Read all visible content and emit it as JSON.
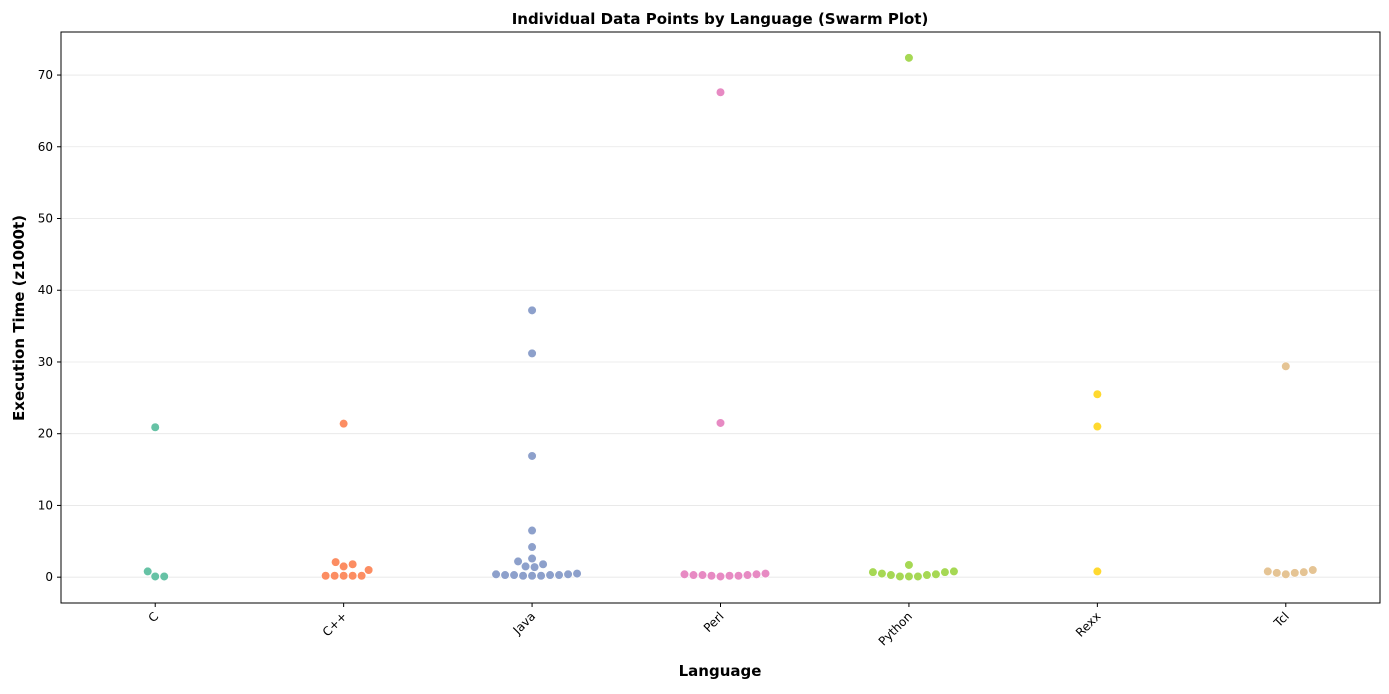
{
  "chart_data": {
    "type": "swarm",
    "title": "Individual Data Points by Language (Swarm Plot)",
    "x_label": "Language",
    "y_label": "Execution Time (z1000t)",
    "categories": [
      "C",
      "C++",
      "Java",
      "Perl",
      "Python",
      "Rexx",
      "Tcl"
    ],
    "colors": [
      "#66c2a5",
      "#fc8d62",
      "#8da0cb",
      "#e78ac3",
      "#a6d854",
      "#ffd92f",
      "#e5c494"
    ],
    "values": [
      [
        20.9,
        0.1,
        0.1,
        0.8
      ],
      [
        21.4,
        2.1,
        1.8,
        1.5,
        1.0,
        0.2,
        0.2,
        0.2,
        0.2,
        0.2
      ],
      [
        37.2,
        31.2,
        16.9,
        6.5,
        4.2,
        2.6,
        2.2,
        1.8,
        1.5,
        1.4,
        0.5,
        0.4,
        0.3,
        0.3,
        0.2,
        0.2,
        0.2,
        0.3,
        0.3,
        0.4
      ],
      [
        67.6,
        21.5,
        0.4,
        0.4,
        0.3,
        0.2,
        0.1,
        0.2,
        0.2,
        0.3,
        0.3,
        0.5
      ],
      [
        72.4,
        1.7,
        0.8,
        0.7,
        0.4,
        0.3,
        0.1,
        0.1,
        0.1,
        0.3,
        0.5,
        0.7
      ],
      [
        25.5,
        21.0,
        0.8
      ],
      [
        29.4,
        0.8,
        0.6,
        0.4,
        0.6,
        0.7,
        1.0
      ]
    ],
    "ylim": [
      -3.6,
      76
    ],
    "yticks": [
      0,
      10,
      20,
      30,
      40,
      50,
      60,
      70
    ],
    "grid": true
  }
}
